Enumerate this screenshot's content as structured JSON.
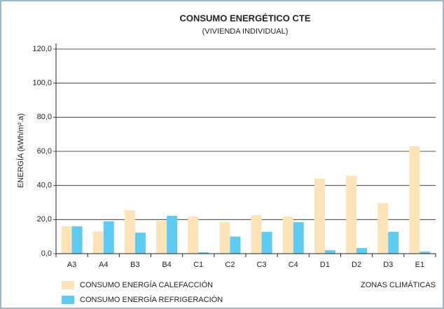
{
  "chart_data": {
    "type": "bar",
    "title": "CONSUMO ENERGÉTICO CTE",
    "subtitle": "(VIVIENDA INDIVIDUAL)",
    "y_label": "ENERGÍA (kWh/m².a)",
    "x_label": "ZONAS CLIMÁTICAS",
    "categories": [
      "A3",
      "A4",
      "B3",
      "B4",
      "C1",
      "C2",
      "C3",
      "C4",
      "D1",
      "D2",
      "D3",
      "E1"
    ],
    "series": [
      {
        "name": "CONSUMO ENERGÍA CALEFACCIÓN",
        "color": "#fde4b8",
        "values": [
          16,
          13,
          25.5,
          19.3,
          21.8,
          18.5,
          22.6,
          21.8,
          44,
          45.7,
          29.6,
          63
        ]
      },
      {
        "name": "CONSUMO ENERGÍA REFRIGERACIÓN",
        "color": "#5ecbf2",
        "values": [
          16,
          19,
          12.3,
          22.2,
          0.8,
          10,
          12.8,
          18.5,
          2,
          3.3,
          12.8,
          1.2
        ]
      }
    ],
    "ylim": [
      0,
      120
    ],
    "yticks": [
      {
        "value": 0,
        "label": "0,0"
      },
      {
        "value": 20,
        "label": "20,0"
      },
      {
        "value": 40,
        "label": "40,0"
      },
      {
        "value": 60,
        "label": "60,0"
      },
      {
        "value": 80,
        "label": "80,0"
      },
      {
        "value": 100,
        "label": "100,0"
      },
      {
        "value": 120,
        "label": "120,0"
      }
    ],
    "grid": true
  }
}
